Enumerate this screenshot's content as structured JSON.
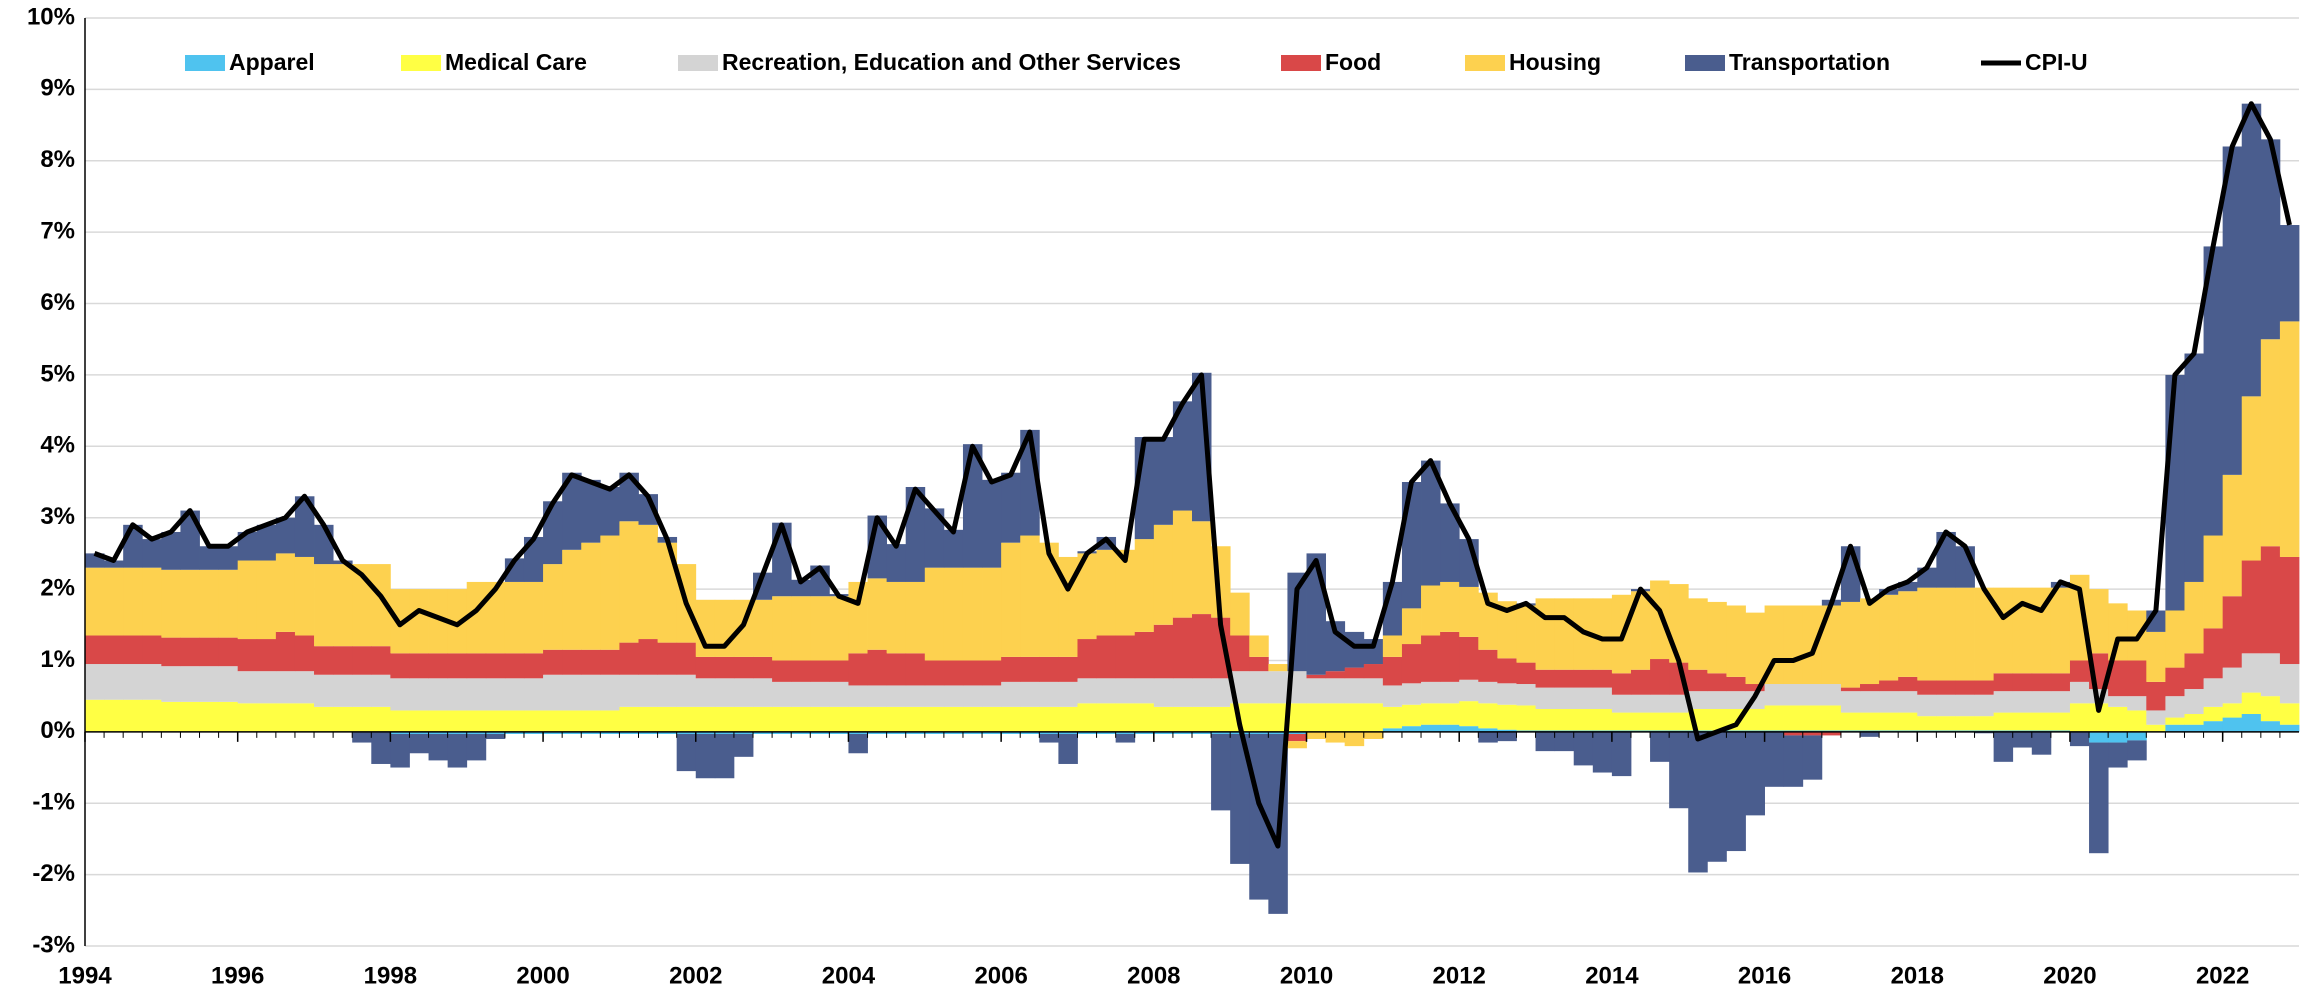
{
  "chart_data": {
    "type": "bar",
    "stacked": true,
    "legend": "top",
    "grid": true,
    "xlim": [
      1994,
      2023
    ],
    "xticks": [
      1994,
      1996,
      1998,
      2000,
      2002,
      2004,
      2006,
      2008,
      2010,
      2012,
      2014,
      2016,
      2018,
      2020,
      2022
    ],
    "ylim": [
      -3,
      10
    ],
    "yticks": [
      {
        "value": -3,
        "label": "-3%"
      },
      {
        "value": -2,
        "label": "-2%"
      },
      {
        "value": -1,
        "label": "-1%"
      },
      {
        "value": 0,
        "label": "0%"
      },
      {
        "value": 1,
        "label": "1%"
      },
      {
        "value": 2,
        "label": "2%"
      },
      {
        "value": 3,
        "label": "3%"
      },
      {
        "value": 4,
        "label": "4%"
      },
      {
        "value": 5,
        "label": "5%"
      },
      {
        "value": 6,
        "label": "6%"
      },
      {
        "value": 7,
        "label": "7%"
      },
      {
        "value": 8,
        "label": "8%"
      },
      {
        "value": 9,
        "label": "9%"
      },
      {
        "value": 10,
        "label": "10%"
      }
    ],
    "x": [
      1994,
      1994.25,
      1994.5,
      1994.75,
      1995,
      1995.25,
      1995.5,
      1995.75,
      1996,
      1996.25,
      1996.5,
      1996.75,
      1997,
      1997.25,
      1997.5,
      1997.75,
      1998,
      1998.25,
      1998.5,
      1998.75,
      1999,
      1999.25,
      1999.5,
      1999.75,
      2000,
      2000.25,
      2000.5,
      2000.75,
      2001,
      2001.25,
      2001.5,
      2001.75,
      2002,
      2002.25,
      2002.5,
      2002.75,
      2003,
      2003.25,
      2003.5,
      2003.75,
      2004,
      2004.25,
      2004.5,
      2004.75,
      2005,
      2005.25,
      2005.5,
      2005.75,
      2006,
      2006.25,
      2006.5,
      2006.75,
      2007,
      2007.25,
      2007.5,
      2007.75,
      2008,
      2008.25,
      2008.5,
      2008.75,
      2009,
      2009.25,
      2009.5,
      2009.75,
      2010,
      2010.25,
      2010.5,
      2010.75,
      2011,
      2011.25,
      2011.5,
      2011.75,
      2012,
      2012.25,
      2012.5,
      2012.75,
      2013,
      2013.25,
      2013.5,
      2013.75,
      2014,
      2014.25,
      2014.5,
      2014.75,
      2015,
      2015.25,
      2015.5,
      2015.75,
      2016,
      2016.25,
      2016.5,
      2016.75,
      2017,
      2017.25,
      2017.5,
      2017.75,
      2018,
      2018.25,
      2018.5,
      2018.75,
      2019,
      2019.25,
      2019.5,
      2019.75,
      2020,
      2020.25,
      2020.5,
      2020.75,
      2021,
      2021.25,
      2021.5,
      2021.75,
      2022,
      2022.25,
      2022.5,
      2022.75
    ],
    "series": [
      {
        "name": "Apparel",
        "color": "#4fc3ef",
        "values": [
          0,
          0,
          0,
          0,
          0,
          0,
          0,
          0,
          0,
          0,
          0,
          0,
          0,
          0,
          0,
          0,
          -0.03,
          -0.03,
          -0.03,
          -0.03,
          -0.03,
          -0.03,
          -0.03,
          -0.03,
          -0.03,
          -0.03,
          -0.03,
          -0.03,
          -0.03,
          -0.03,
          -0.03,
          -0.03,
          -0.03,
          -0.03,
          -0.03,
          -0.03,
          -0.03,
          -0.03,
          -0.03,
          -0.03,
          -0.03,
          -0.03,
          -0.03,
          -0.03,
          -0.03,
          -0.03,
          -0.03,
          -0.03,
          -0.03,
          -0.03,
          -0.03,
          -0.03,
          -0.03,
          -0.03,
          -0.03,
          -0.03,
          -0.03,
          -0.03,
          -0.03,
          -0.03,
          -0.03,
          -0.03,
          -0.03,
          -0.03,
          0,
          0,
          0,
          0,
          0.05,
          0.08,
          0.1,
          0.1,
          0.08,
          0.05,
          0.03,
          0.02,
          0.02,
          0.02,
          0.02,
          0.02,
          0.02,
          0.02,
          0.02,
          0.02,
          0.02,
          0.02,
          0.02,
          0.02,
          0.02,
          0.02,
          0.02,
          0.02,
          0.02,
          0.02,
          0.02,
          0.02,
          0.02,
          0.02,
          0.02,
          0.02,
          0.02,
          0.02,
          0.02,
          0.02,
          0,
          -0.15,
          -0.15,
          -0.12,
          0,
          0.1,
          0.1,
          0.15,
          0.2,
          0.25,
          0.15,
          0.1
        ]
      },
      {
        "name": "Medical Care",
        "color": "#ffff44",
        "values": [
          0.45,
          0.45,
          0.45,
          0.45,
          0.42,
          0.42,
          0.42,
          0.42,
          0.4,
          0.4,
          0.4,
          0.4,
          0.35,
          0.35,
          0.35,
          0.35,
          0.3,
          0.3,
          0.3,
          0.3,
          0.3,
          0.3,
          0.3,
          0.3,
          0.3,
          0.3,
          0.3,
          0.3,
          0.35,
          0.35,
          0.35,
          0.35,
          0.35,
          0.35,
          0.35,
          0.35,
          0.35,
          0.35,
          0.35,
          0.35,
          0.35,
          0.35,
          0.35,
          0.35,
          0.35,
          0.35,
          0.35,
          0.35,
          0.35,
          0.35,
          0.35,
          0.35,
          0.4,
          0.4,
          0.4,
          0.4,
          0.35,
          0.35,
          0.35,
          0.35,
          0.4,
          0.4,
          0.4,
          0.4,
          0.4,
          0.4,
          0.4,
          0.4,
          0.3,
          0.3,
          0.3,
          0.3,
          0.35,
          0.35,
          0.35,
          0.35,
          0.3,
          0.3,
          0.3,
          0.3,
          0.25,
          0.25,
          0.25,
          0.25,
          0.3,
          0.3,
          0.3,
          0.3,
          0.35,
          0.35,
          0.35,
          0.35,
          0.25,
          0.25,
          0.25,
          0.25,
          0.2,
          0.2,
          0.2,
          0.2,
          0.25,
          0.25,
          0.25,
          0.25,
          0.4,
          0.4,
          0.35,
          0.3,
          0.1,
          0.1,
          0.15,
          0.2,
          0.2,
          0.3,
          0.35,
          0.3
        ]
      },
      {
        "name": "Recreation, Education and Other Services",
        "color": "#d4d4d4",
        "values": [
          0.5,
          0.5,
          0.5,
          0.5,
          0.5,
          0.5,
          0.5,
          0.5,
          0.45,
          0.45,
          0.45,
          0.45,
          0.45,
          0.45,
          0.45,
          0.45,
          0.45,
          0.45,
          0.45,
          0.45,
          0.45,
          0.45,
          0.45,
          0.45,
          0.5,
          0.5,
          0.5,
          0.5,
          0.45,
          0.45,
          0.45,
          0.45,
          0.4,
          0.4,
          0.4,
          0.4,
          0.35,
          0.35,
          0.35,
          0.35,
          0.3,
          0.3,
          0.3,
          0.3,
          0.3,
          0.3,
          0.3,
          0.3,
          0.35,
          0.35,
          0.35,
          0.35,
          0.35,
          0.35,
          0.35,
          0.35,
          0.4,
          0.4,
          0.4,
          0.4,
          0.45,
          0.45,
          0.45,
          0.45,
          0.35,
          0.35,
          0.35,
          0.35,
          0.3,
          0.3,
          0.3,
          0.3,
          0.3,
          0.3,
          0.3,
          0.3,
          0.3,
          0.3,
          0.3,
          0.3,
          0.25,
          0.25,
          0.25,
          0.25,
          0.25,
          0.25,
          0.25,
          0.25,
          0.3,
          0.3,
          0.3,
          0.3,
          0.3,
          0.3,
          0.3,
          0.3,
          0.3,
          0.3,
          0.3,
          0.3,
          0.3,
          0.3,
          0.3,
          0.3,
          0.3,
          0.2,
          0.15,
          0.2,
          0.2,
          0.3,
          0.35,
          0.4,
          0.5,
          0.55,
          0.6,
          0.55
        ]
      },
      {
        "name": "Food",
        "color": "#d94848",
        "values": [
          0.4,
          0.4,
          0.4,
          0.4,
          0.4,
          0.4,
          0.4,
          0.4,
          0.45,
          0.45,
          0.55,
          0.5,
          0.4,
          0.4,
          0.4,
          0.4,
          0.35,
          0.35,
          0.35,
          0.35,
          0.35,
          0.35,
          0.35,
          0.35,
          0.35,
          0.35,
          0.35,
          0.35,
          0.45,
          0.5,
          0.45,
          0.45,
          0.3,
          0.3,
          0.3,
          0.3,
          0.3,
          0.3,
          0.3,
          0.3,
          0.45,
          0.5,
          0.45,
          0.45,
          0.35,
          0.35,
          0.35,
          0.35,
          0.35,
          0.35,
          0.35,
          0.35,
          0.55,
          0.6,
          0.6,
          0.65,
          0.75,
          0.85,
          0.9,
          0.85,
          0.5,
          0.2,
          0,
          -0.1,
          0.05,
          0.1,
          0.15,
          0.2,
          0.4,
          0.55,
          0.65,
          0.7,
          0.6,
          0.45,
          0.35,
          0.3,
          0.25,
          0.25,
          0.25,
          0.25,
          0.3,
          0.35,
          0.5,
          0.45,
          0.3,
          0.25,
          0.2,
          0.1,
          0,
          -0.05,
          -0.05,
          -0.05,
          0.05,
          0.1,
          0.15,
          0.2,
          0.2,
          0.2,
          0.2,
          0.2,
          0.25,
          0.25,
          0.25,
          0.25,
          0.3,
          0.5,
          0.5,
          0.5,
          0.4,
          0.4,
          0.5,
          0.7,
          1,
          1.3,
          1.5,
          1.5
        ]
      },
      {
        "name": "Housing",
        "color": "#fdd14f",
        "values": [
          0.95,
          0.95,
          0.95,
          0.95,
          0.95,
          0.95,
          0.95,
          0.95,
          1.1,
          1.1,
          1.1,
          1.1,
          1.15,
          1.15,
          1.15,
          1.15,
          0.9,
          0.9,
          0.9,
          0.9,
          1,
          1,
          1,
          1,
          1.2,
          1.4,
          1.5,
          1.6,
          1.7,
          1.6,
          1.4,
          1.1,
          0.8,
          0.8,
          0.8,
          0.8,
          0.9,
          0.9,
          0.9,
          0.9,
          1,
          1,
          1,
          1,
          1.3,
          1.3,
          1.3,
          1.3,
          1.6,
          1.7,
          1.6,
          1.4,
          1.2,
          1.2,
          1.2,
          1.3,
          1.4,
          1.5,
          1.3,
          1,
          0.6,
          0.3,
          0.1,
          -0.1,
          -0.1,
          -0.15,
          -0.2,
          -0.1,
          0.3,
          0.5,
          0.7,
          0.7,
          0.7,
          0.8,
          0.8,
          0.8,
          1,
          1,
          1,
          1,
          1.1,
          1.1,
          1.1,
          1.1,
          1,
          1,
          1,
          1,
          1.1,
          1.1,
          1.1,
          1.1,
          1.2,
          1.2,
          1.2,
          1.2,
          1.3,
          1.3,
          1.3,
          1.3,
          1.2,
          1.2,
          1.2,
          1.2,
          1.2,
          0.9,
          0.8,
          0.7,
          0.7,
          0.8,
          1,
          1.3,
          1.7,
          2.3,
          2.9,
          3.3
        ]
      },
      {
        "name": "Transportation",
        "color": "#4a5d8e",
        "values": [
          0.2,
          0.1,
          0.6,
          0.4,
          0.53,
          0.83,
          0.33,
          0.33,
          0.4,
          0.5,
          0.5,
          0.85,
          0.55,
          0.05,
          -0.15,
          -0.45,
          -0.47,
          -0.27,
          -0.37,
          -0.47,
          -0.37,
          -0.07,
          0.33,
          0.63,
          0.88,
          1.08,
          0.88,
          0.68,
          0.68,
          0.43,
          0.08,
          -0.52,
          -0.62,
          -0.62,
          -0.32,
          0.38,
          1.03,
          0.23,
          0.43,
          0.03,
          -0.27,
          0.88,
          0.53,
          1.33,
          0.83,
          0.53,
          1.73,
          1.23,
          0.98,
          1.48,
          -0.12,
          -0.42,
          0.03,
          0.18,
          -0.12,
          1.43,
          1.23,
          1.53,
          2.08,
          -1.07,
          -1.82,
          -2.32,
          -2.52,
          1.38,
          1.7,
          0.7,
          0.5,
          0.35,
          0.75,
          1.77,
          1.75,
          1.1,
          0.67,
          -0.15,
          -0.13,
          0.03,
          -0.27,
          -0.27,
          -0.47,
          -0.57,
          -0.62,
          0.03,
          -0.42,
          -1.07,
          -1.97,
          -1.82,
          -1.67,
          -1.17,
          -0.77,
          -0.72,
          -0.62,
          0.08,
          0.78,
          -0.07,
          0.08,
          0.13,
          0.28,
          0.78,
          0.58,
          -0.02,
          -0.42,
          -0.22,
          -0.32,
          0.08,
          -0.2,
          -1.55,
          -0.35,
          -0.28,
          0.3,
          3.3,
          3.2,
          4.05,
          4.6,
          4.1,
          2.8,
          1.35
        ]
      },
      {
        "name": "CPI-U",
        "color": "#000000",
        "type": "line",
        "values": [
          2.5,
          2.4,
          2.9,
          2.7,
          2.8,
          3.1,
          2.6,
          2.6,
          2.8,
          2.9,
          3,
          3.3,
          2.9,
          2.4,
          2.2,
          1.9,
          1.5,
          1.7,
          1.6,
          1.5,
          1.7,
          2,
          2.4,
          2.7,
          3.2,
          3.6,
          3.5,
          3.4,
          3.6,
          3.3,
          2.7,
          1.8,
          1.2,
          1.2,
          1.5,
          2.2,
          2.9,
          2.1,
          2.3,
          1.9,
          1.8,
          3,
          2.6,
          3.4,
          3.1,
          2.8,
          4,
          3.5,
          3.6,
          4.2,
          2.5,
          2,
          2.5,
          2.7,
          2.4,
          4.1,
          4.1,
          4.6,
          5,
          1.5,
          0.1,
          -1,
          -1.6,
          2,
          2.4,
          1.4,
          1.2,
          1.2,
          2.1,
          3.5,
          3.8,
          3.2,
          2.7,
          1.8,
          1.7,
          1.8,
          1.6,
          1.6,
          1.4,
          1.3,
          1.3,
          2,
          1.7,
          1,
          -0.1,
          0,
          0.1,
          0.5,
          1,
          1,
          1.1,
          1.8,
          2.6,
          1.8,
          2,
          2.1,
          2.3,
          2.8,
          2.6,
          2,
          1.6,
          1.8,
          1.7,
          2.1,
          2,
          0.3,
          1.3,
          1.3,
          1.7,
          5,
          5.3,
          6.8,
          8.2,
          8.8,
          8.3,
          7.1
        ]
      }
    ]
  }
}
